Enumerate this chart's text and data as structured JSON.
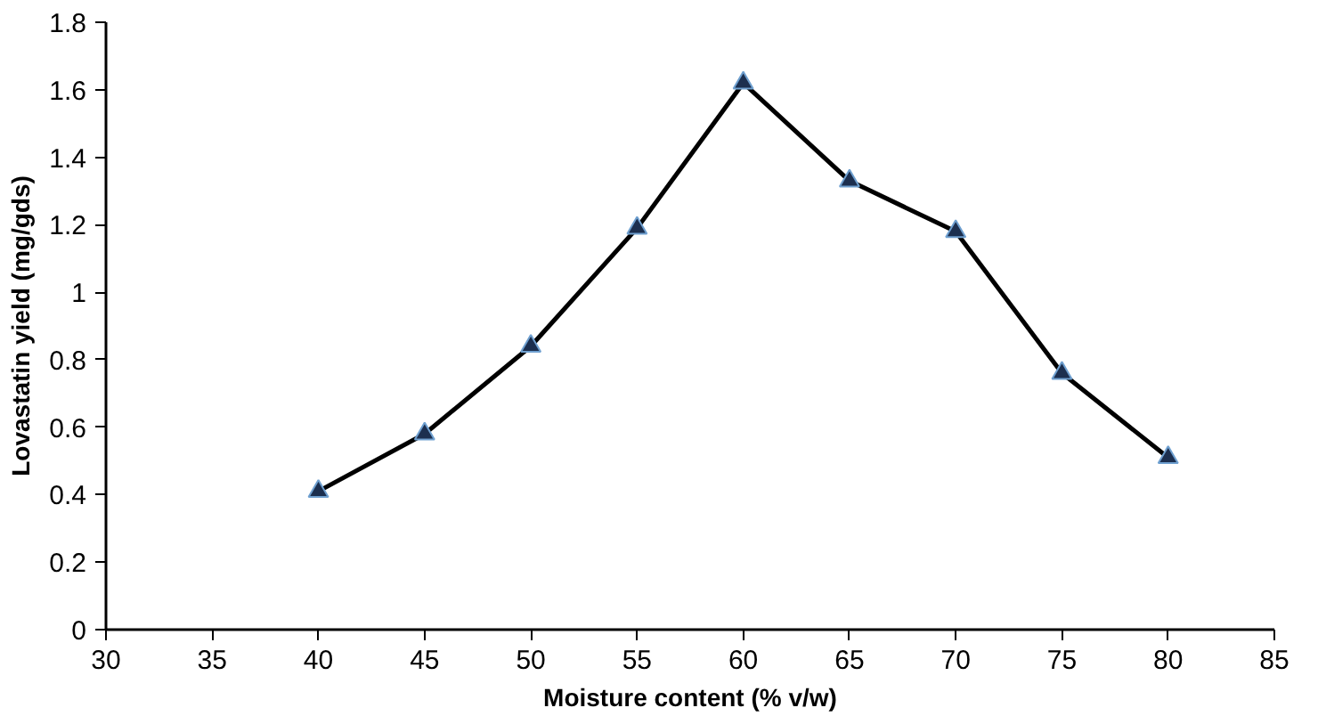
{
  "chart_data": {
    "type": "line",
    "xlabel": "Moisture content (% v/w)",
    "ylabel": "Lovastatin yield (mg/gds)",
    "x": [
      40,
      45,
      50,
      55,
      60,
      65,
      70,
      75,
      80
    ],
    "series": [
      {
        "color": "#000000",
        "values": [
          0.41,
          0.58,
          0.84,
          1.19,
          1.62,
          1.33,
          1.18,
          0.76,
          0.51
        ]
      }
    ],
    "xlim": [
      30,
      85
    ],
    "xticks": [
      30,
      35,
      40,
      45,
      50,
      55,
      60,
      65,
      70,
      75,
      80,
      85
    ],
    "ylim": [
      0,
      1.8
    ],
    "yticks": [
      0,
      0.2,
      0.4,
      0.6,
      0.8,
      1,
      1.2,
      1.4,
      1.6,
      1.8
    ],
    "grid": false,
    "marker": "triangle",
    "line_style": "solid"
  }
}
